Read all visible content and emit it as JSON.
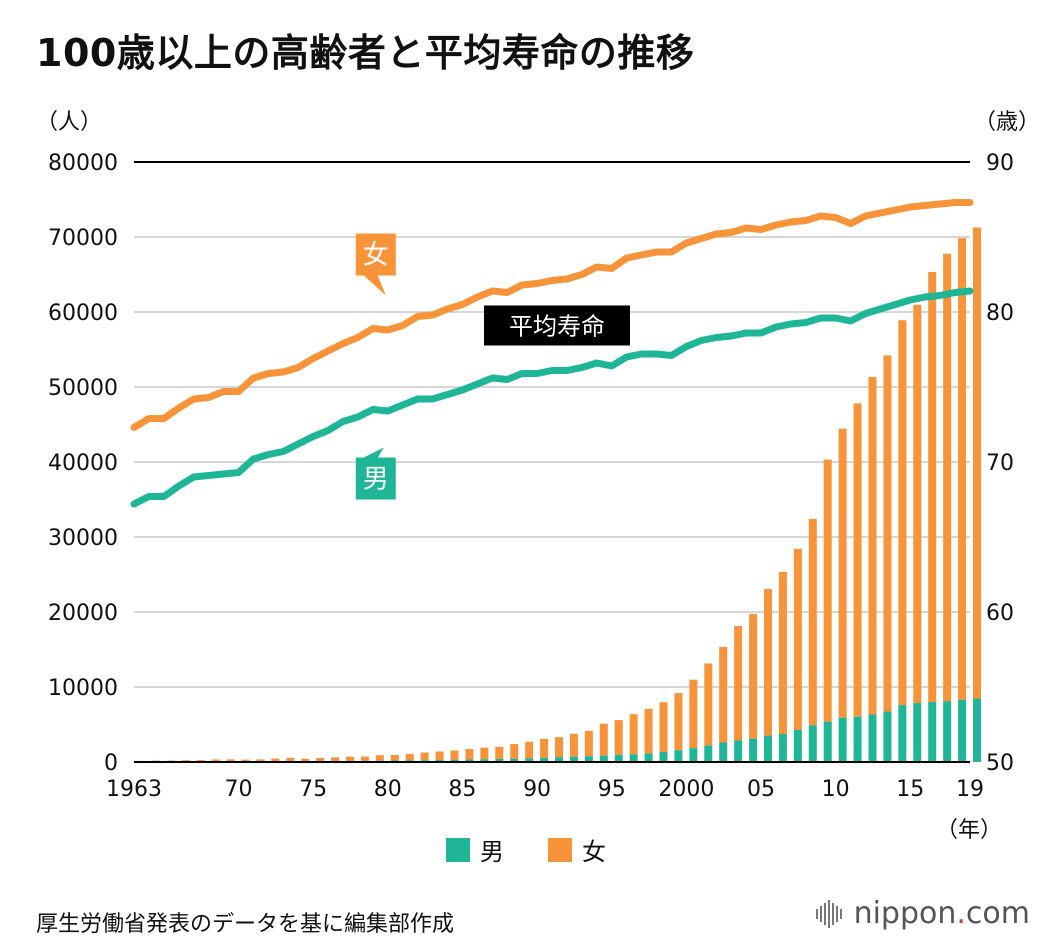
{
  "title": "100歳以上の高齢者と平均寿命の推移",
  "unit_left": "（人）",
  "unit_right": "（歳）",
  "unit_x": "（年）",
  "legend": {
    "male": "男",
    "female": "女"
  },
  "source": "厚生労働省発表のデータを基に編集部作成",
  "logo": {
    "main": "nippon",
    "dot": ".",
    "tld": "com"
  },
  "colors": {
    "male": "#1fb597",
    "female": "#f7943a",
    "label_bg": "#000000"
  },
  "chart_data": {
    "type": "bar",
    "years": [
      1963,
      1964,
      1965,
      1966,
      1967,
      1968,
      1969,
      1970,
      1971,
      1972,
      1973,
      1974,
      1975,
      1976,
      1977,
      1978,
      1979,
      1980,
      1981,
      1982,
      1983,
      1984,
      1985,
      1986,
      1987,
      1988,
      1989,
      1990,
      1991,
      1992,
      1993,
      1994,
      1995,
      1996,
      1997,
      1998,
      1999,
      2000,
      2001,
      2002,
      2003,
      2004,
      2005,
      2006,
      2007,
      2008,
      2009,
      2010,
      2011,
      2012,
      2013,
      2014,
      2015,
      2016,
      2017,
      2018,
      2019
    ],
    "xticks": [
      {
        "year": 1963,
        "label": "1963"
      },
      {
        "year": 1970,
        "label": "70"
      },
      {
        "year": 1975,
        "label": "75"
      },
      {
        "year": 1980,
        "label": "80"
      },
      {
        "year": 1985,
        "label": "85"
      },
      {
        "year": 1990,
        "label": "90"
      },
      {
        "year": 1995,
        "label": "95"
      },
      {
        "year": 2000,
        "label": "2000"
      },
      {
        "year": 2005,
        "label": "05"
      },
      {
        "year": 2010,
        "label": "10"
      },
      {
        "year": 2015,
        "label": "15"
      },
      {
        "year": 2019,
        "label": "19"
      }
    ],
    "y_left": {
      "min": 0,
      "max": 80000,
      "ticks": [
        0,
        10000,
        20000,
        30000,
        40000,
        50000,
        60000,
        70000,
        80000
      ]
    },
    "y_right": {
      "min": 50,
      "max": 90,
      "ticks": [
        50,
        60,
        70,
        80,
        90
      ]
    },
    "grid": true,
    "bar_series": [
      {
        "name": "男",
        "values": [
          20,
          30,
          30,
          40,
          50,
          60,
          60,
          60,
          70,
          80,
          90,
          100,
          110,
          120,
          130,
          150,
          170,
          200,
          220,
          240,
          270,
          300,
          330,
          360,
          400,
          440,
          490,
          550,
          620,
          690,
          770,
          850,
          960,
          1030,
          1140,
          1330,
          1570,
          1850,
          2180,
          2610,
          2880,
          3110,
          3520,
          3740,
          4280,
          4900,
          5380,
          5900,
          6020,
          6340,
          6730,
          7590,
          7860,
          7990,
          8120,
          8300,
          8460
        ]
      },
      {
        "name": "女",
        "values": [
          130,
          170,
          170,
          210,
          230,
          280,
          300,
          250,
          280,
          390,
          470,
          330,
          440,
          500,
          570,
          580,
          740,
          730,
          850,
          1030,
          1130,
          1230,
          1400,
          1550,
          1630,
          1950,
          2210,
          2530,
          2690,
          3070,
          3390,
          4260,
          4630,
          5340,
          5950,
          6640,
          7620,
          9130,
          10960,
          12730,
          15250,
          16620,
          19540,
          21610,
          24130,
          27510,
          34940,
          38550,
          41790,
          45010,
          47480,
          51310,
          53100,
          57350,
          59650,
          61540,
          62810
        ]
      }
    ],
    "line_series": [
      {
        "name": "男",
        "values": [
          67.2,
          67.7,
          67.7,
          68.4,
          69.0,
          69.1,
          69.2,
          69.3,
          70.2,
          70.5,
          70.7,
          71.2,
          71.7,
          72.1,
          72.7,
          73.0,
          73.5,
          73.4,
          73.8,
          74.2,
          74.2,
          74.5,
          74.8,
          75.2,
          75.6,
          75.5,
          75.9,
          75.9,
          76.1,
          76.1,
          76.3,
          76.6,
          76.4,
          77.0,
          77.2,
          77.2,
          77.1,
          77.7,
          78.1,
          78.3,
          78.4,
          78.6,
          78.6,
          79.0,
          79.2,
          79.3,
          79.6,
          79.6,
          79.4,
          79.9,
          80.2,
          80.5,
          80.8,
          81.0,
          81.1,
          81.3,
          81.4
        ]
      },
      {
        "name": "女",
        "values": [
          72.3,
          72.9,
          72.9,
          73.6,
          74.2,
          74.3,
          74.7,
          74.7,
          75.6,
          75.9,
          76.0,
          76.3,
          76.9,
          77.4,
          77.9,
          78.3,
          78.9,
          78.8,
          79.1,
          79.7,
          79.8,
          80.2,
          80.5,
          81.0,
          81.4,
          81.3,
          81.8,
          81.9,
          82.1,
          82.2,
          82.5,
          83.0,
          82.9,
          83.6,
          83.8,
          84.0,
          84.0,
          84.6,
          84.9,
          85.2,
          85.3,
          85.6,
          85.5,
          85.8,
          86.0,
          86.1,
          86.4,
          86.3,
          85.9,
          86.4,
          86.6,
          86.8,
          87.0,
          87.1,
          87.2,
          87.3,
          87.3
        ]
      }
    ],
    "annotations": [
      {
        "text": "女",
        "year": 1980,
        "value": 80.3,
        "style": "box-female"
      },
      {
        "text": "男",
        "year": 1980,
        "value": 71.5,
        "style": "box-male"
      },
      {
        "text": "平均寿命",
        "year": 1991,
        "value": 79.1,
        "style": "box-black"
      }
    ]
  }
}
